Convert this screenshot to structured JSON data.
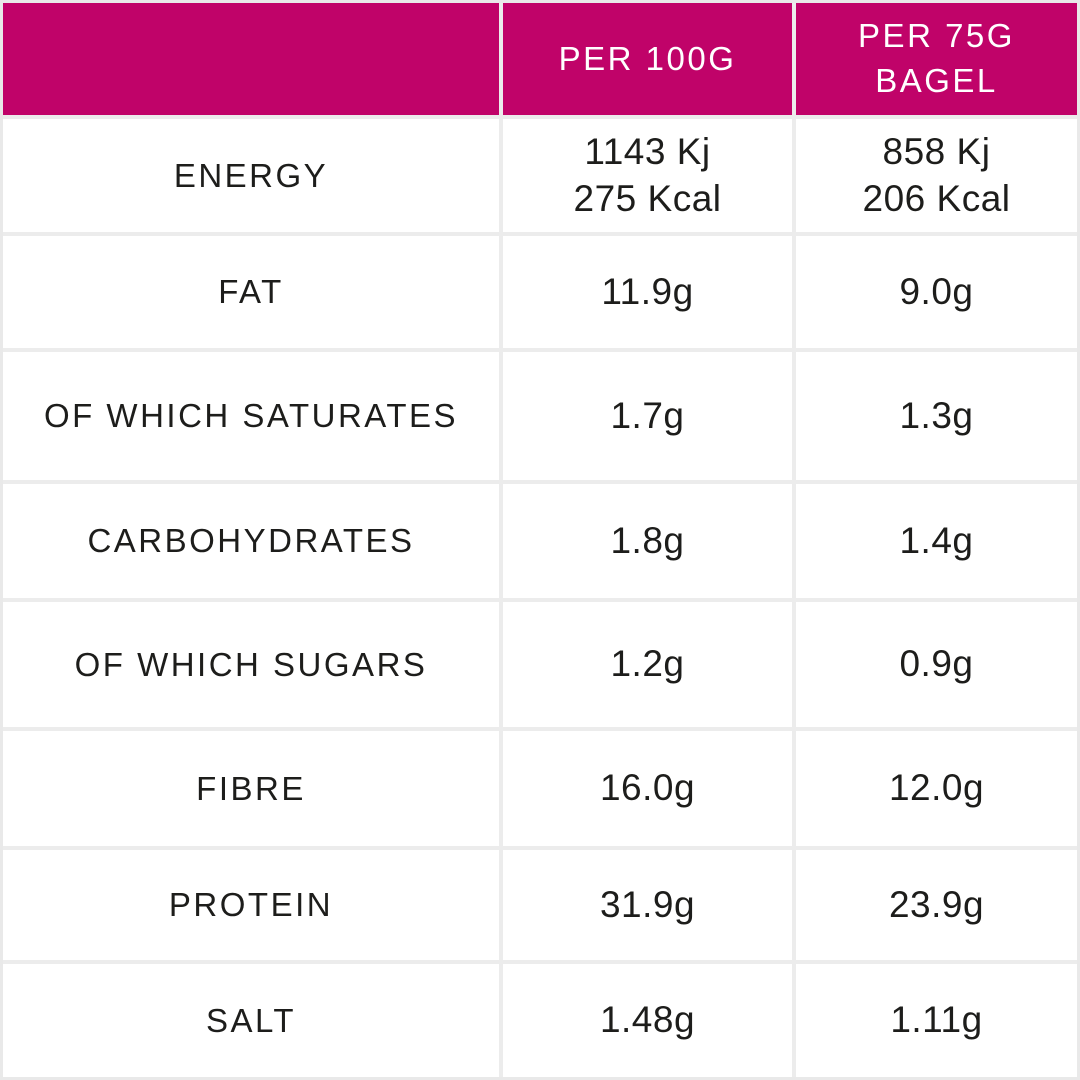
{
  "table": {
    "title": "Nutrition information table",
    "header": {
      "col1": "",
      "col2": "PER 100G",
      "col3": "PER 75G\nBAGEL"
    },
    "rows": [
      {
        "label": "ENERGY",
        "per100g": "1143 Kj\n275 Kcal",
        "per75g": "858 Kj\n206 Kcal"
      },
      {
        "label": "FAT",
        "per100g": "11.9g",
        "per75g": "9.0g"
      },
      {
        "label": "OF WHICH SATURATES",
        "per100g": "1.7g",
        "per75g": "1.3g"
      },
      {
        "label": "CARBOHYDRATES",
        "per100g": "1.8g",
        "per75g": "1.4g"
      },
      {
        "label": "OF WHICH SUGARS",
        "per100g": "1.2g",
        "per75g": "0.9g"
      },
      {
        "label": "FIBRE",
        "per100g": "16.0g",
        "per75g": "12.0g"
      },
      {
        "label": "PROTEIN",
        "per100g": "31.9g",
        "per75g": "23.9g"
      },
      {
        "label": "SALT",
        "per100g": "1.48g",
        "per75g": "1.11g"
      }
    ]
  },
  "colors": {
    "header_background": "#C00369",
    "header_text": "#FFFFFF",
    "body_text": "#1D1D1B",
    "gridline": "#ECECEC",
    "cell_background": "#FFFFFF"
  },
  "chart_data": {
    "type": "table",
    "title": "Nutrition information per 100g and per 75g bagel",
    "columns": [
      "",
      "PER 100G",
      "PER 75G BAGEL"
    ],
    "rows": [
      [
        "ENERGY",
        "1143 Kj / 275 Kcal",
        "858 Kj / 206 Kcal"
      ],
      [
        "FAT",
        "11.9g",
        "9.0g"
      ],
      [
        "OF WHICH SATURATES",
        "1.7g",
        "1.3g"
      ],
      [
        "CARBOHYDRATES",
        "1.8g",
        "1.4g"
      ],
      [
        "OF WHICH SUGARS",
        "1.2g",
        "0.9g"
      ],
      [
        "FIBRE",
        "16.0g",
        "12.0g"
      ],
      [
        "PROTEIN",
        "31.9g",
        "23.9g"
      ],
      [
        "SALT",
        "1.48g",
        "1.11g"
      ]
    ],
    "layout": {
      "header_row_highlighted": true,
      "grid": true
    }
  }
}
